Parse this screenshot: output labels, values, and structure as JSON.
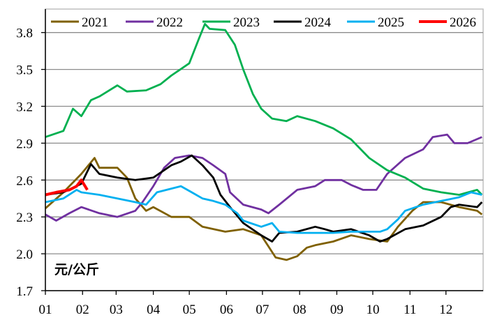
{
  "chart_data": {
    "type": "line",
    "title": "",
    "xlabel": "",
    "ylabel": "元/公斤",
    "unit_label": "元/公斤",
    "ylim": [
      1.7,
      3.9
    ],
    "yticks": [
      "1.7",
      "2.0",
      "2.3",
      "2.6",
      "2.9",
      "3.2",
      "3.5",
      "3.8"
    ],
    "xticks": [
      "01",
      "02",
      "03",
      "04",
      "05",
      "06",
      "07",
      "08",
      "09",
      "10",
      "11",
      "12"
    ],
    "grid": "horizontal",
    "legend_placement": "top",
    "series": [
      {
        "name": "2021",
        "color": "#7f6000",
        "points": [
          [
            "01-01",
            2.37
          ],
          [
            "01-16",
            2.5
          ],
          [
            "01-31",
            2.65
          ],
          [
            "02-11",
            2.78
          ],
          [
            "02-15",
            2.7
          ],
          [
            "03-02",
            2.7
          ],
          [
            "03-10",
            2.62
          ],
          [
            "03-17",
            2.45
          ],
          [
            "03-26",
            2.35
          ],
          [
            "04-01",
            2.38
          ],
          [
            "04-16",
            2.3
          ],
          [
            "05-01",
            2.3
          ],
          [
            "05-12",
            2.22
          ],
          [
            "05-31",
            2.18
          ],
          [
            "06-15",
            2.2
          ],
          [
            "06-30",
            2.15
          ],
          [
            "07-12",
            1.97
          ],
          [
            "07-21",
            1.95
          ],
          [
            "07-30",
            1.98
          ],
          [
            "08-07",
            2.05
          ],
          [
            "08-14",
            2.07
          ],
          [
            "08-29",
            2.1
          ],
          [
            "09-13",
            2.15
          ],
          [
            "09-28",
            2.12
          ],
          [
            "10-13",
            2.1
          ],
          [
            "10-22",
            2.22
          ],
          [
            "11-03",
            2.35
          ],
          [
            "11-12",
            2.42
          ],
          [
            "11-27",
            2.42
          ],
          [
            "12-12",
            2.38
          ],
          [
            "12-27",
            2.35
          ],
          [
            "12-31",
            2.32
          ]
        ]
      },
      {
        "name": "2022",
        "color": "#7030a0",
        "points": [
          [
            "01-01",
            2.32
          ],
          [
            "01-10",
            2.27
          ],
          [
            "01-21",
            2.33
          ],
          [
            "01-31",
            2.38
          ],
          [
            "02-15",
            2.33
          ],
          [
            "03-02",
            2.3
          ],
          [
            "03-17",
            2.35
          ],
          [
            "03-23",
            2.42
          ],
          [
            "04-01",
            2.55
          ],
          [
            "04-10",
            2.7
          ],
          [
            "04-19",
            2.78
          ],
          [
            "05-01",
            2.8
          ],
          [
            "05-12",
            2.78
          ],
          [
            "05-21",
            2.72
          ],
          [
            "05-31",
            2.65
          ],
          [
            "06-04",
            2.5
          ],
          [
            "06-15",
            2.4
          ],
          [
            "06-30",
            2.36
          ],
          [
            "07-06",
            2.33
          ],
          [
            "07-15",
            2.4
          ],
          [
            "07-30",
            2.52
          ],
          [
            "08-14",
            2.55
          ],
          [
            "08-22",
            2.6
          ],
          [
            "09-05",
            2.6
          ],
          [
            "09-13",
            2.56
          ],
          [
            "09-23",
            2.52
          ],
          [
            "10-04",
            2.52
          ],
          [
            "10-13",
            2.65
          ],
          [
            "10-28",
            2.78
          ],
          [
            "11-12",
            2.85
          ],
          [
            "11-20",
            2.95
          ],
          [
            "12-02",
            2.97
          ],
          [
            "12-08",
            2.9
          ],
          [
            "12-19",
            2.9
          ],
          [
            "12-31",
            2.95
          ]
        ]
      },
      {
        "name": "2023",
        "color": "#00b050",
        "points": [
          [
            "01-01",
            2.95
          ],
          [
            "01-16",
            3.0
          ],
          [
            "01-24",
            3.18
          ],
          [
            "01-31",
            3.12
          ],
          [
            "02-08",
            3.25
          ],
          [
            "02-15",
            3.28
          ],
          [
            "03-02",
            3.37
          ],
          [
            "03-10",
            3.32
          ],
          [
            "03-26",
            3.33
          ],
          [
            "04-07",
            3.38
          ],
          [
            "04-16",
            3.45
          ],
          [
            "05-01",
            3.55
          ],
          [
            "05-09",
            3.75
          ],
          [
            "05-14",
            3.87
          ],
          [
            "05-18",
            3.83
          ],
          [
            "05-31",
            3.82
          ],
          [
            "06-08",
            3.7
          ],
          [
            "06-15",
            3.5
          ],
          [
            "06-23",
            3.3
          ],
          [
            "06-30",
            3.18
          ],
          [
            "07-09",
            3.1
          ],
          [
            "07-21",
            3.08
          ],
          [
            "07-30",
            3.12
          ],
          [
            "08-14",
            3.08
          ],
          [
            "08-29",
            3.02
          ],
          [
            "09-13",
            2.93
          ],
          [
            "09-28",
            2.78
          ],
          [
            "10-13",
            2.68
          ],
          [
            "10-28",
            2.62
          ],
          [
            "11-12",
            2.53
          ],
          [
            "11-27",
            2.5
          ],
          [
            "12-12",
            2.48
          ],
          [
            "12-27",
            2.52
          ],
          [
            "12-31",
            2.48
          ]
        ]
      },
      {
        "name": "2024",
        "color": "#000000",
        "points": [
          [
            "01-01",
            2.48
          ],
          [
            "01-16",
            2.5
          ],
          [
            "01-31",
            2.57
          ],
          [
            "02-08",
            2.73
          ],
          [
            "02-15",
            2.65
          ],
          [
            "03-02",
            2.62
          ],
          [
            "03-17",
            2.6
          ],
          [
            "04-01",
            2.62
          ],
          [
            "04-16",
            2.72
          ],
          [
            "04-24",
            2.75
          ],
          [
            "05-03",
            2.8
          ],
          [
            "05-12",
            2.72
          ],
          [
            "05-21",
            2.62
          ],
          [
            "05-27",
            2.48
          ],
          [
            "06-04",
            2.38
          ],
          [
            "06-15",
            2.25
          ],
          [
            "06-30",
            2.15
          ],
          [
            "07-09",
            2.1
          ],
          [
            "07-15",
            2.17
          ],
          [
            "07-30",
            2.18
          ],
          [
            "08-14",
            2.22
          ],
          [
            "08-22",
            2.2
          ],
          [
            "08-29",
            2.18
          ],
          [
            "09-13",
            2.2
          ],
          [
            "09-28",
            2.15
          ],
          [
            "10-07",
            2.1
          ],
          [
            "10-13",
            2.12
          ],
          [
            "10-28",
            2.2
          ],
          [
            "11-12",
            2.23
          ],
          [
            "11-27",
            2.3
          ],
          [
            "12-05",
            2.38
          ],
          [
            "12-12",
            2.4
          ],
          [
            "12-27",
            2.38
          ],
          [
            "12-31",
            2.42
          ]
        ]
      },
      {
        "name": "2025",
        "color": "#00b0f0",
        "points": [
          [
            "01-01",
            2.42
          ],
          [
            "01-16",
            2.45
          ],
          [
            "01-27",
            2.52
          ],
          [
            "01-31",
            2.5
          ],
          [
            "02-15",
            2.48
          ],
          [
            "03-02",
            2.45
          ],
          [
            "03-17",
            2.42
          ],
          [
            "03-26",
            2.4
          ],
          [
            "04-04",
            2.5
          ],
          [
            "04-16",
            2.53
          ],
          [
            "04-24",
            2.55
          ],
          [
            "05-03",
            2.5
          ],
          [
            "05-12",
            2.45
          ],
          [
            "05-21",
            2.43
          ],
          [
            "05-31",
            2.4
          ],
          [
            "06-10",
            2.33
          ],
          [
            "06-15",
            2.27
          ],
          [
            "06-30",
            2.22
          ],
          [
            "07-09",
            2.25
          ],
          [
            "07-15",
            2.18
          ],
          [
            "07-30",
            2.17
          ],
          [
            "08-14",
            2.17
          ],
          [
            "08-29",
            2.17
          ],
          [
            "09-13",
            2.18
          ],
          [
            "09-28",
            2.18
          ],
          [
            "10-07",
            2.18
          ],
          [
            "10-13",
            2.2
          ],
          [
            "10-22",
            2.28
          ],
          [
            "10-28",
            2.35
          ],
          [
            "11-12",
            2.4
          ],
          [
            "11-27",
            2.43
          ],
          [
            "12-12",
            2.46
          ],
          [
            "12-22",
            2.5
          ],
          [
            "12-31",
            2.48
          ]
        ]
      },
      {
        "name": "2026",
        "color": "#ff0000",
        "points": [
          [
            "01-01",
            2.48
          ],
          [
            "01-10",
            2.5
          ],
          [
            "01-21",
            2.52
          ],
          [
            "01-27",
            2.55
          ],
          [
            "01-31",
            2.6
          ],
          [
            "02-05",
            2.52
          ]
        ]
      }
    ]
  }
}
